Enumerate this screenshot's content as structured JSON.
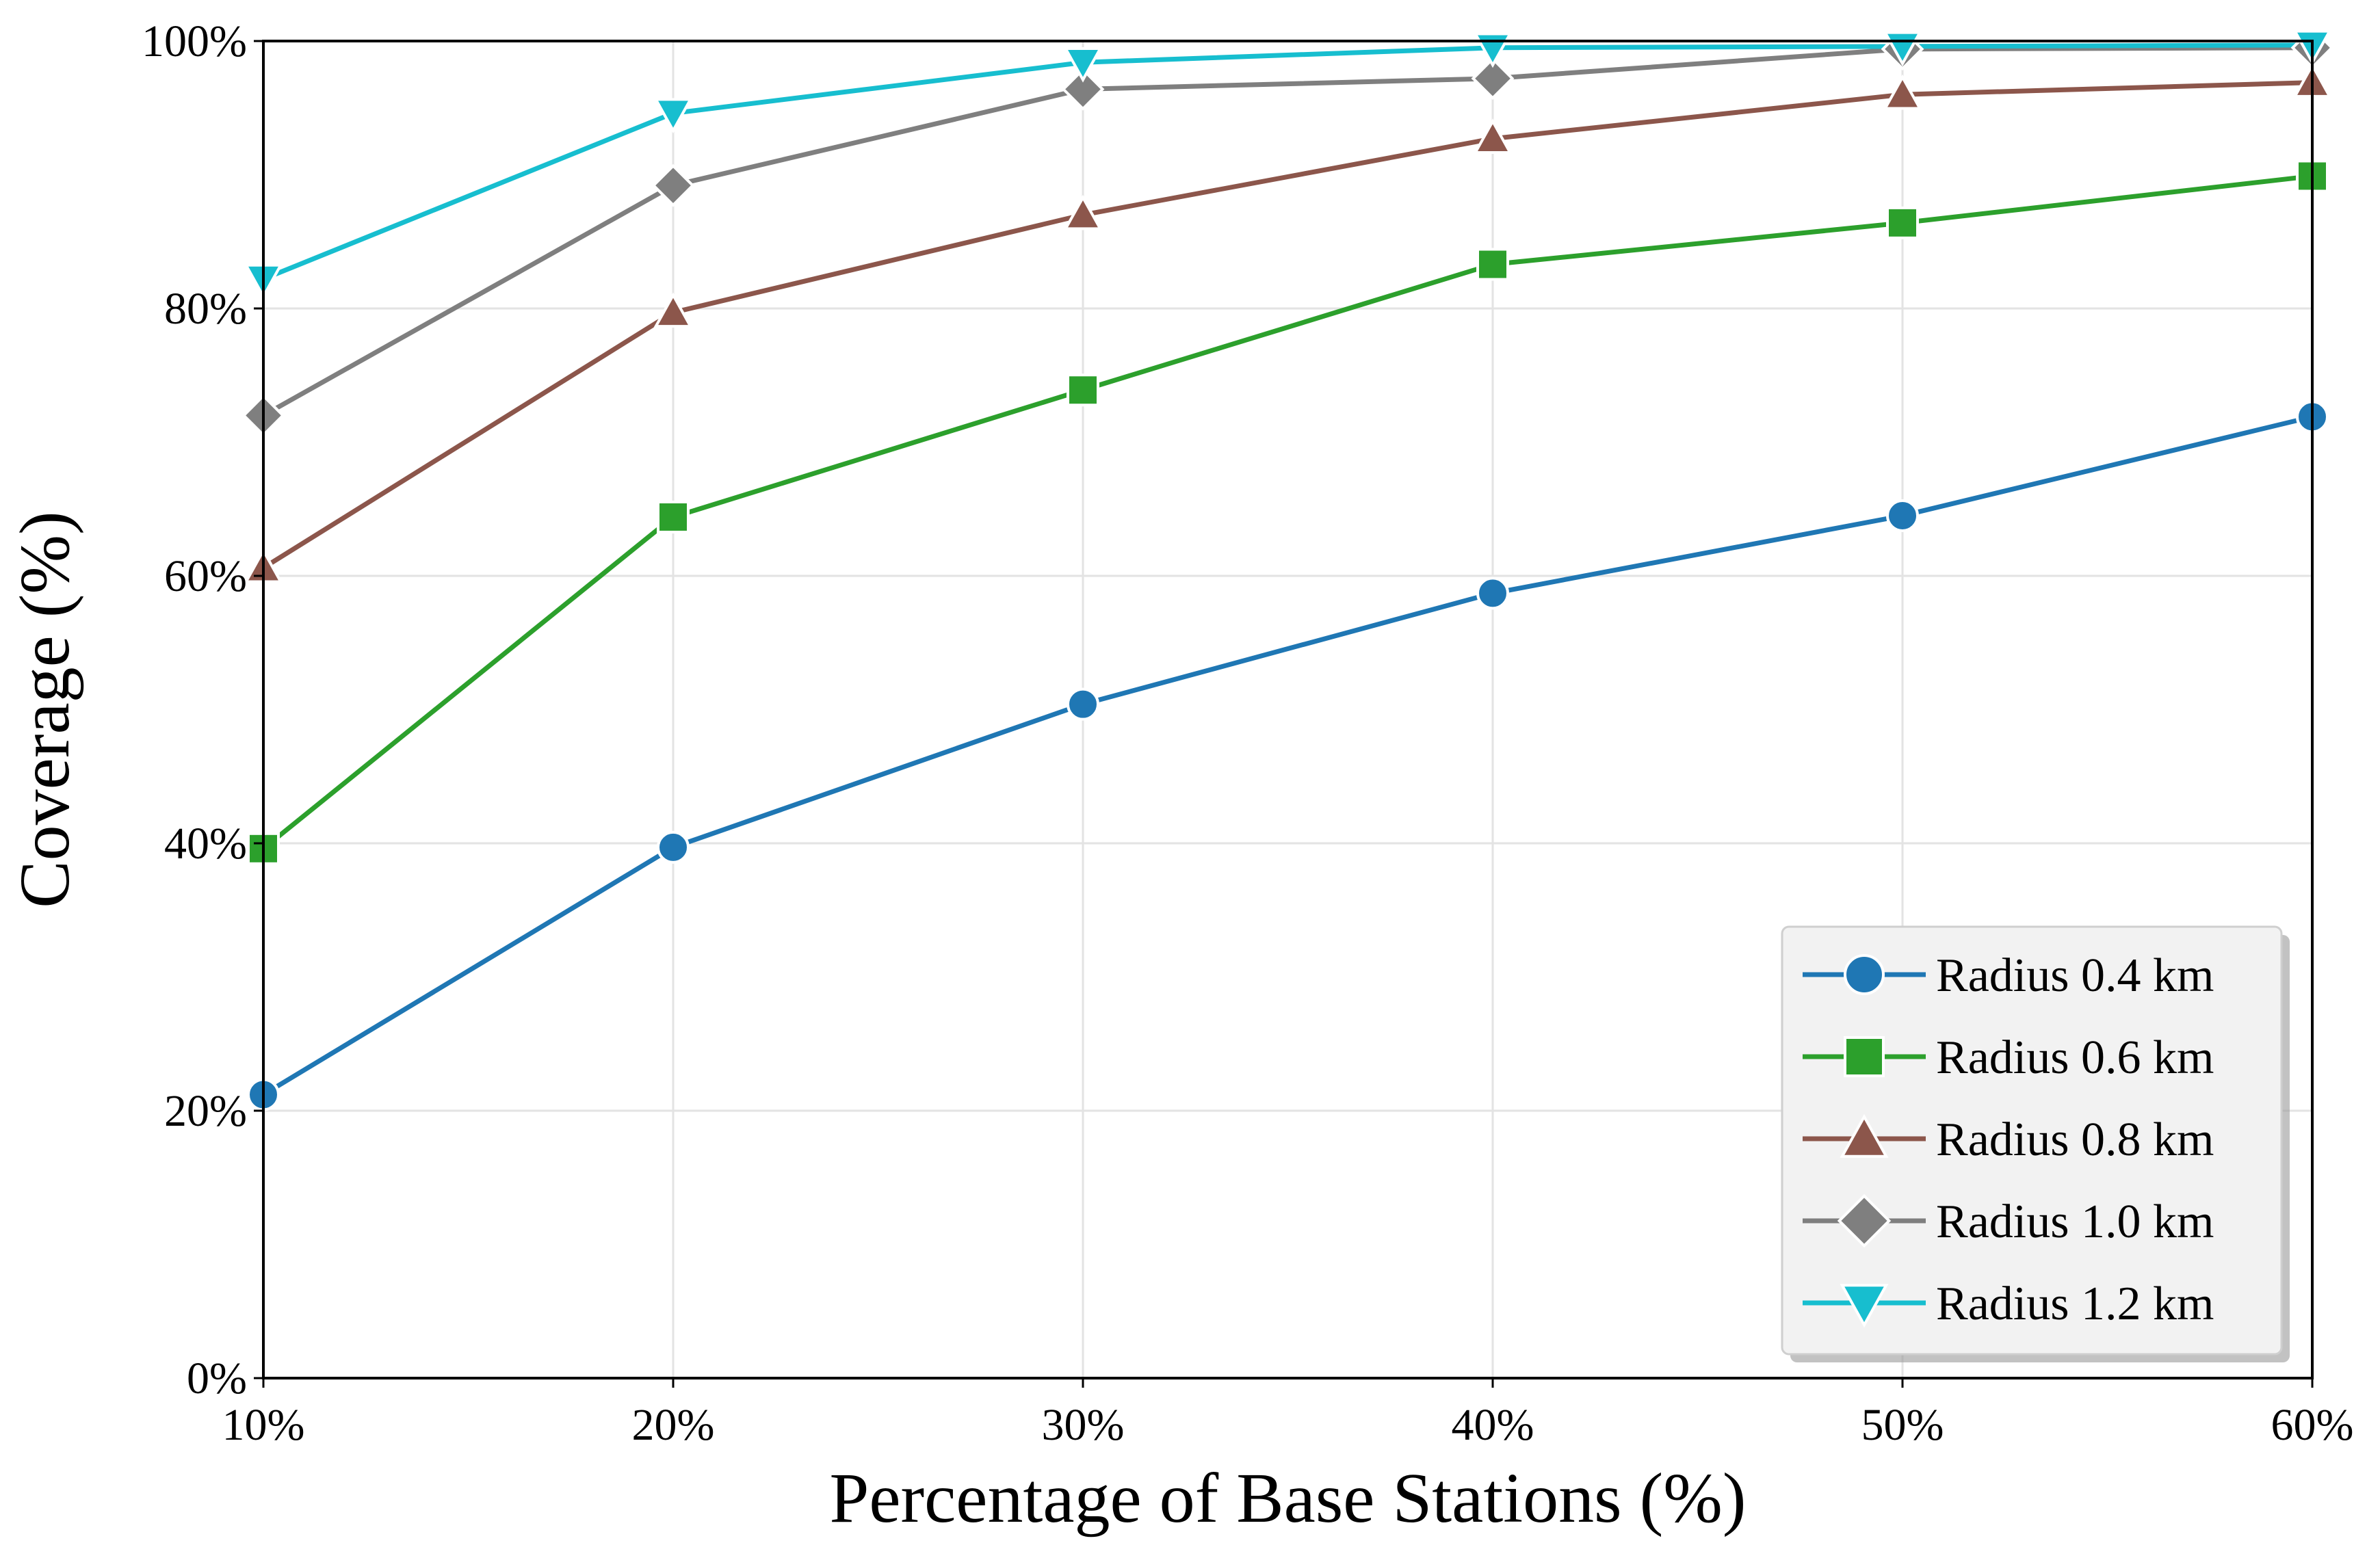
{
  "chart_data": {
    "type": "line",
    "title": "",
    "xlabel": "Percentage of Base Stations (%)",
    "ylabel": "Coverage (%)",
    "x": [
      10,
      20,
      30,
      40,
      50,
      60
    ],
    "x_tick_labels": [
      "10%",
      "20%",
      "30%",
      "40%",
      "50%",
      "60%"
    ],
    "xlim": [
      10,
      60
    ],
    "ylim": [
      0,
      100
    ],
    "y_ticks": [
      0,
      20,
      40,
      60,
      80,
      100
    ],
    "y_tick_labels": [
      "0%",
      "20%",
      "40%",
      "60%",
      "80%",
      "100%"
    ],
    "grid": true,
    "legend_position": "bottom-right",
    "series": [
      {
        "name": "Radius 0.4 km",
        "color": "#1f77b4",
        "marker": "circle",
        "values": [
          21.2,
          39.7,
          50.4,
          58.7,
          64.5,
          71.9
        ]
      },
      {
        "name": "Radius 0.6 km",
        "color": "#2ca02c",
        "marker": "square",
        "values": [
          39.6,
          64.4,
          73.9,
          83.3,
          86.4,
          89.9
        ]
      },
      {
        "name": "Radius 0.8 km",
        "color": "#8c564b",
        "marker": "triangle-up",
        "values": [
          60.6,
          79.7,
          87.0,
          92.7,
          96.0,
          96.9
        ]
      },
      {
        "name": "Radius 1.0 km",
        "color": "#7f7f7f",
        "marker": "diamond",
        "values": [
          72.0,
          89.2,
          96.4,
          97.2,
          99.4,
          99.5
        ]
      },
      {
        "name": "Radius 1.2 km",
        "color": "#17becf",
        "marker": "triangle-down",
        "values": [
          82.2,
          94.6,
          98.4,
          99.5,
          99.6,
          99.7
        ]
      }
    ]
  }
}
